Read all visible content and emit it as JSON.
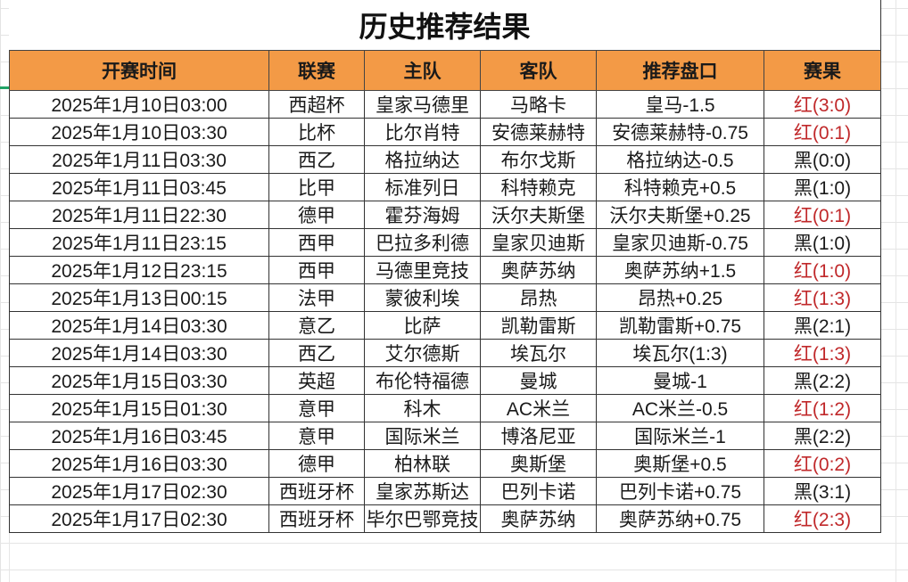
{
  "title": "历史推荐结果",
  "headers": [
    "开赛时间",
    "联赛",
    "主队",
    "客队",
    "推荐盘口",
    "赛果"
  ],
  "colors": {
    "header_bg": "#f39a46",
    "red_result": "#c0282a",
    "black_result": "#1a1a1a",
    "selection": "#21a366"
  },
  "rows": [
    {
      "time": "2025年1月10日03:00",
      "league": "西超杯",
      "home": "皇家马德里",
      "away": "马略卡",
      "pick": "皇马-1.5",
      "result": "红(3:0)",
      "win": true
    },
    {
      "time": "2025年1月10日03:30",
      "league": "比杯",
      "home": "比尔肖特",
      "away": "安德莱赫特",
      "pick": "安德莱赫特-0.75",
      "result": "红(0:1)",
      "win": true
    },
    {
      "time": "2025年1月11日03:30",
      "league": "西乙",
      "home": "格拉纳达",
      "away": "布尔戈斯",
      "pick": "格拉纳达-0.5",
      "result": "黑(0:0)",
      "win": false
    },
    {
      "time": "2025年1月11日03:45",
      "league": "比甲",
      "home": "标准列日",
      "away": "科特赖克",
      "pick": "科特赖克+0.5",
      "result": "黑(1:0)",
      "win": false
    },
    {
      "time": "2025年1月11日22:30",
      "league": "德甲",
      "home": "霍芬海姆",
      "away": "沃尔夫斯堡",
      "pick": "沃尔夫斯堡+0.25",
      "result": "红(0:1)",
      "win": true
    },
    {
      "time": "2025年1月11日23:15",
      "league": "西甲",
      "home": "巴拉多利德",
      "away": "皇家贝迪斯",
      "pick": "皇家贝迪斯-0.75",
      "result": "黑(1:0)",
      "win": false
    },
    {
      "time": "2025年1月12日23:15",
      "league": "西甲",
      "home": "马德里竞技",
      "away": "奥萨苏纳",
      "pick": "奥萨苏纳+1.5",
      "result": "红(1:0)",
      "win": true
    },
    {
      "time": "2025年1月13日00:15",
      "league": "法甲",
      "home": "蒙彼利埃",
      "away": "昂热",
      "pick": "昂热+0.25",
      "result": "红(1:3)",
      "win": true
    },
    {
      "time": "2025年1月14日03:30",
      "league": "意乙",
      "home": "比萨",
      "away": "凯勒雷斯",
      "pick": "凯勒雷斯+0.75",
      "result": "黑(2:1)",
      "win": false
    },
    {
      "time": "2025年1月14日03:30",
      "league": "西乙",
      "home": "艾尔德斯",
      "away": "埃瓦尔",
      "pick": "埃瓦尔(1:3)",
      "result": "红(1:3)",
      "win": true
    },
    {
      "time": "2025年1月15日03:30",
      "league": "英超",
      "home": "布伦特福德",
      "away": "曼城",
      "pick": "曼城-1",
      "result": "黑(2:2)",
      "win": false
    },
    {
      "time": "2025年1月15日01:30",
      "league": "意甲",
      "home": "科木",
      "away": "AC米兰",
      "pick": "AC米兰-0.5",
      "result": "红(1:2)",
      "win": true
    },
    {
      "time": "2025年1月16日03:45",
      "league": "意甲",
      "home": "国际米兰",
      "away": "博洛尼亚",
      "pick": "国际米兰-1",
      "result": "黑(2:2)",
      "win": false
    },
    {
      "time": "2025年1月16日03:30",
      "league": "德甲",
      "home": "柏林联",
      "away": "奥斯堡",
      "pick": "奥斯堡+0.5",
      "result": "红(0:2)",
      "win": true
    },
    {
      "time": "2025年1月17日02:30",
      "league": "西班牙杯",
      "home": "皇家苏斯达",
      "away": "巴列卡诺",
      "pick": "巴列卡诺+0.75",
      "result": "黑(3:1)",
      "win": false
    },
    {
      "time": "2025年1月17日02:30",
      "league": "西班牙杯",
      "home": "毕尔巴鄂竞技",
      "away": "奥萨苏纳",
      "pick": "奥萨苏纳+0.75",
      "result": "红(2:3)",
      "win": true
    }
  ]
}
